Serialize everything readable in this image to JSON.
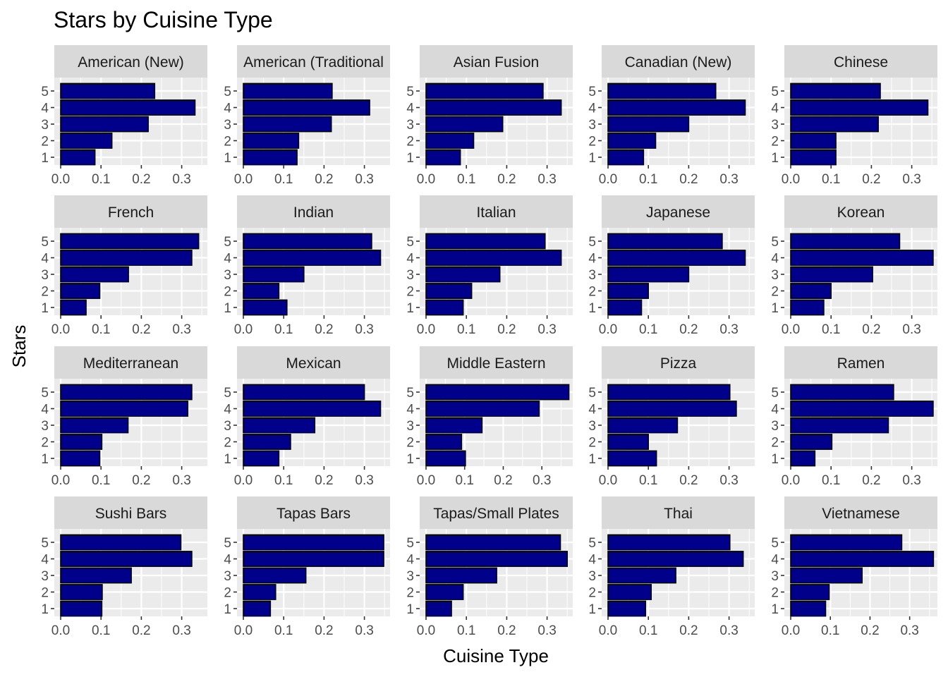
{
  "chart_data": {
    "type": "bar",
    "orientation": "horizontal",
    "layout": "facet-grid 4x5",
    "title": "Stars by Cuisine Type",
    "xlabel": "Cuisine Type",
    "ylabel": "Stars",
    "categories": [
      "1",
      "2",
      "3",
      "4",
      "5"
    ],
    "bar_fill": "#00008B",
    "bar_outline": "#000000",
    "panel_background": "#EBEBEB",
    "strip_background": "#D9D9D9",
    "grid": true,
    "legend": "none",
    "panels": [
      {
        "name": "American (New)",
        "values": [
          0.085,
          0.127,
          0.217,
          0.333,
          0.233
        ],
        "xlim": [
          0,
          0.35
        ],
        "xticks": [
          "0.0",
          "0.1",
          "0.2",
          "0.3"
        ]
      },
      {
        "name": "American (Traditional",
        "values": [
          0.133,
          0.137,
          0.218,
          0.313,
          0.22
        ],
        "xlim": [
          0,
          0.325
        ],
        "xticks": [
          "0.0",
          "0.1",
          "0.2",
          "0.3"
        ]
      },
      {
        "name": "Asian Fusion",
        "values": [
          0.085,
          0.118,
          0.19,
          0.335,
          0.29
        ],
        "xlim": [
          0,
          0.35
        ],
        "xticks": [
          "0.0",
          "0.1",
          "0.2",
          "0.3"
        ]
      },
      {
        "name": "Canadian (New)",
        "values": [
          0.088,
          0.118,
          0.2,
          0.34,
          0.267
        ],
        "xlim": [
          0,
          0.35
        ],
        "xticks": [
          "0.0",
          "0.1",
          "0.2",
          "0.3"
        ]
      },
      {
        "name": "Chinese",
        "values": [
          0.112,
          0.112,
          0.217,
          0.34,
          0.222
        ],
        "xlim": [
          0,
          0.35
        ],
        "xticks": [
          "0.0",
          "0.1",
          "0.2",
          "0.3"
        ]
      },
      {
        "name": "French",
        "values": [
          0.063,
          0.097,
          0.168,
          0.325,
          0.342
        ],
        "xlim": [
          0,
          0.35
        ],
        "xticks": [
          "0.0",
          "0.1",
          "0.2",
          "0.3"
        ]
      },
      {
        "name": "Indian",
        "values": [
          0.108,
          0.088,
          0.15,
          0.34,
          0.318
        ],
        "xlim": [
          0,
          0.35
        ],
        "xticks": [
          "0.0",
          "0.1",
          "0.2",
          "0.3"
        ]
      },
      {
        "name": "Italian",
        "values": [
          0.092,
          0.113,
          0.183,
          0.335,
          0.295
        ],
        "xlim": [
          0,
          0.35
        ],
        "xticks": [
          "0.0",
          "0.1",
          "0.2",
          "0.3"
        ]
      },
      {
        "name": "Japanese",
        "values": [
          0.083,
          0.1,
          0.2,
          0.34,
          0.283
        ],
        "xlim": [
          0,
          0.35
        ],
        "xticks": [
          "0.0",
          "0.1",
          "0.2",
          "0.3"
        ]
      },
      {
        "name": "Korean",
        "values": [
          0.082,
          0.1,
          0.203,
          0.353,
          0.27
        ],
        "xlim": [
          0,
          0.36
        ],
        "xticks": [
          "0.0",
          "0.1",
          "0.2",
          "0.3"
        ]
      },
      {
        "name": "Mediterranean",
        "values": [
          0.097,
          0.102,
          0.167,
          0.315,
          0.325
        ],
        "xlim": [
          0,
          0.33
        ],
        "xticks": [
          "0.0",
          "0.1",
          "0.2",
          "0.3"
        ]
      },
      {
        "name": "Mexican",
        "values": [
          0.088,
          0.117,
          0.177,
          0.34,
          0.3
        ],
        "xlim": [
          0,
          0.35
        ],
        "xticks": [
          "0.0",
          "0.1",
          "0.2",
          "0.3"
        ]
      },
      {
        "name": "Middle Eastern",
        "values": [
          0.102,
          0.092,
          0.145,
          0.293,
          0.37
        ],
        "xlim": [
          0,
          0.38
        ],
        "xticks": [
          "0.0",
          "0.1",
          "0.2",
          "0.3"
        ]
      },
      {
        "name": "Pizza",
        "values": [
          0.12,
          0.1,
          0.172,
          0.318,
          0.302
        ],
        "xlim": [
          0,
          0.33
        ],
        "xticks": [
          "0.0",
          "0.1",
          "0.2",
          "0.3"
        ]
      },
      {
        "name": "Ramen",
        "values": [
          0.06,
          0.102,
          0.242,
          0.353,
          0.255
        ],
        "xlim": [
          0,
          0.36
        ],
        "xticks": [
          "0.0",
          "0.1",
          "0.2",
          "0.3"
        ]
      },
      {
        "name": "Sushi Bars",
        "values": [
          0.102,
          0.103,
          0.175,
          0.325,
          0.298
        ],
        "xlim": [
          0,
          0.33
        ],
        "xticks": [
          "0.0",
          "0.1",
          "0.2",
          "0.3"
        ]
      },
      {
        "name": "Tapas Bars",
        "values": [
          0.067,
          0.08,
          0.155,
          0.348,
          0.348
        ],
        "xlim": [
          0,
          0.36
        ],
        "xticks": [
          "0.0",
          "0.1",
          "0.2",
          "0.3"
        ]
      },
      {
        "name": "Tapas/Small Plates",
        "values": [
          0.063,
          0.092,
          0.175,
          0.35,
          0.333
        ],
        "xlim": [
          0,
          0.35
        ],
        "xticks": [
          "0.0",
          "0.1",
          "0.2",
          "0.3"
        ]
      },
      {
        "name": "Thai",
        "values": [
          0.093,
          0.107,
          0.168,
          0.335,
          0.302
        ],
        "xlim": [
          0,
          0.35
        ],
        "xticks": [
          "0.0",
          "0.1",
          "0.2",
          "0.3"
        ]
      },
      {
        "name": "Vietnamese",
        "values": [
          0.088,
          0.097,
          0.18,
          0.36,
          0.28
        ],
        "xlim": [
          0,
          0.37
        ],
        "xticks": [
          "0.0",
          "0.1",
          "0.2",
          "0.3"
        ]
      }
    ]
  }
}
